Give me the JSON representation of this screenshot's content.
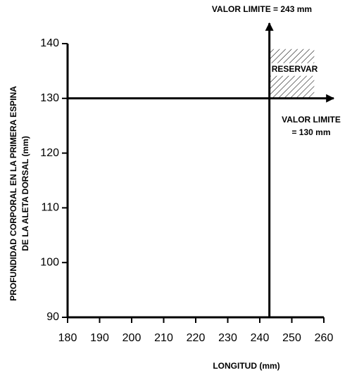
{
  "chart_data": {
    "type": "threshold",
    "xlabel": "LONGITUD (mm)",
    "ylabel": [
      "PROFUNDIDAD CORPORAL EN LA PRIMERA ESPINA",
      "DE LA ALETA DORSAL (mm)"
    ],
    "xlim": [
      180,
      260
    ],
    "xticks": [
      180,
      190,
      200,
      210,
      220,
      230,
      240,
      250,
      260
    ],
    "ylim": [
      90,
      140
    ],
    "yticks": [
      90,
      100,
      110,
      120,
      130,
      140
    ],
    "vline": {
      "value": 243,
      "label": [
        "VALOR LIMITE = 243 mm"
      ]
    },
    "hline": {
      "value": 130,
      "label": [
        "VALOR LIMITE",
        "= 130 mm"
      ]
    },
    "region": {
      "label": "RESERVAR",
      "xlim": [
        243,
        257
      ],
      "ylim": [
        130,
        139
      ]
    },
    "color": "#000000"
  }
}
